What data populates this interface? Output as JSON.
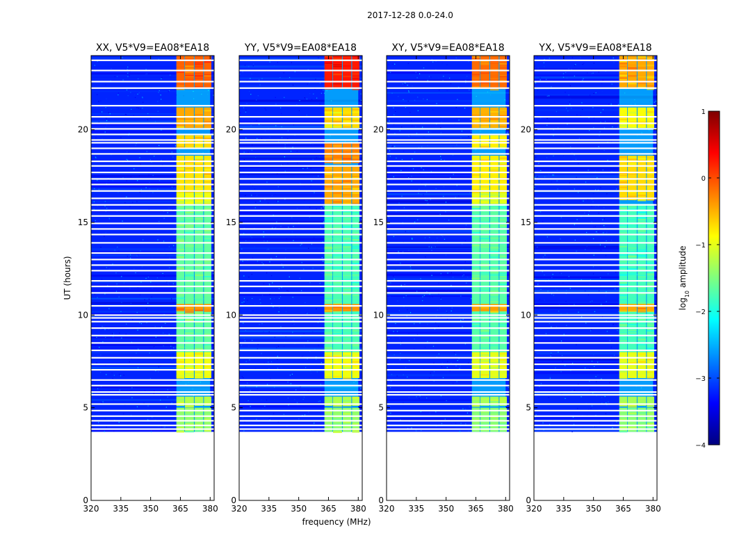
{
  "figure": {
    "suptitle": "2017-12-28 0.0-24.0",
    "xlabel": "frequency (MHz)",
    "ylabel": "UT (hours)"
  },
  "chart_data": {
    "type": "heatmap",
    "title": "2017-12-28 0.0-24.0",
    "xlabel": "frequency (MHz)",
    "ylabel": "UT (hours)",
    "xlim": [
      320,
      382
    ],
    "ylim": [
      0,
      24
    ],
    "xticks": [
      320,
      335,
      350,
      365,
      380
    ],
    "yticks": [
      0,
      5,
      10,
      15,
      20
    ],
    "data_start_hour": 3.7,
    "data_end_hour": 24.0,
    "active_band_mhz": [
      363,
      380
    ],
    "active_subbands_mhz": [
      [
        363.0,
        367.0
      ],
      [
        367.3,
        371.8
      ],
      [
        372.2,
        376.5
      ],
      [
        376.9,
        380.6
      ]
    ],
    "background_log10_amplitude": -3.2,
    "gap_hours": [
      3.85,
      4.05,
      4.3,
      4.55,
      4.85,
      5.2,
      5.7,
      5.85,
      6.2,
      6.5,
      7.05,
      7.35,
      7.7,
      8.1,
      8.5,
      8.9,
      9.3,
      9.65,
      9.85,
      10.0,
      10.5,
      11.2,
      11.55,
      11.85,
      12.4,
      12.7,
      13.0,
      13.35,
      13.9,
      14.35,
      14.65,
      14.95,
      15.35,
      15.65,
      15.95,
      16.3,
      16.7,
      17.05,
      17.35,
      17.7,
      18.05,
      18.3,
      18.7,
      19.0,
      19.3,
      19.45,
      19.75,
      20.05,
      20.35,
      20.7,
      21.3,
      22.25,
      22.6,
      23.2,
      23.75
    ],
    "panels": [
      {
        "title": "XX, V5*V9=EA08*EA18",
        "hot_intervals": [
          [
            22.2,
            24.0,
            -0.1
          ],
          [
            20.1,
            21.2,
            -0.45
          ],
          [
            19.0,
            19.7,
            -0.7
          ],
          [
            16.6,
            18.6,
            -0.75
          ],
          [
            16.0,
            16.6,
            -0.95
          ],
          [
            10.2,
            10.6,
            -0.35
          ],
          [
            6.6,
            8.0,
            -0.95
          ],
          [
            5.1,
            5.6,
            -1.25
          ],
          [
            3.7,
            5.0,
            -1.4
          ],
          [
            8.0,
            16.0,
            -1.65
          ]
        ]
      },
      {
        "title": "YY, V5*V9=EA08*EA18",
        "hot_intervals": [
          [
            22.2,
            24.0,
            0.25
          ],
          [
            20.1,
            21.2,
            -0.7
          ],
          [
            18.2,
            19.3,
            -0.25
          ],
          [
            16.0,
            18.0,
            -0.45
          ],
          [
            10.2,
            10.6,
            -0.35
          ],
          [
            6.6,
            8.0,
            -0.95
          ],
          [
            5.1,
            5.6,
            -1.25
          ],
          [
            3.7,
            5.0,
            -1.4
          ],
          [
            8.0,
            16.0,
            -1.75
          ]
        ]
      },
      {
        "title": "XY, V5*V9=EA08*EA18",
        "hot_intervals": [
          [
            22.2,
            24.0,
            -0.15
          ],
          [
            20.1,
            21.2,
            -0.5
          ],
          [
            19.0,
            19.7,
            -0.8
          ],
          [
            16.6,
            18.6,
            -0.8
          ],
          [
            16.0,
            16.6,
            -1.0
          ],
          [
            10.2,
            10.6,
            -0.4
          ],
          [
            6.6,
            8.0,
            -1.0
          ],
          [
            5.1,
            5.6,
            -1.3
          ],
          [
            3.7,
            5.0,
            -1.45
          ],
          [
            8.0,
            16.0,
            -1.7
          ]
        ]
      },
      {
        "title": "YX, V5*V9=EA08*EA18",
        "hot_intervals": [
          [
            22.2,
            24.0,
            -0.45
          ],
          [
            20.1,
            21.2,
            -0.9
          ],
          [
            16.2,
            18.6,
            -0.7
          ],
          [
            10.2,
            10.6,
            -0.45
          ],
          [
            6.6,
            8.0,
            -1.0
          ],
          [
            5.1,
            5.6,
            -1.3
          ],
          [
            3.7,
            5.0,
            -1.45
          ],
          [
            8.0,
            16.0,
            -1.8
          ]
        ]
      }
    ],
    "colorbar": {
      "label": "log10 amplitude",
      "label_base": "log",
      "label_sub": "10",
      "label_rest": " amplitude",
      "min": -4,
      "max": 1,
      "ticks": [
        1,
        0,
        -1,
        -2,
        -3,
        -4
      ],
      "tick_labels": [
        "1",
        "0",
        "−1",
        "−2",
        "−3",
        "−4"
      ],
      "colormap": "jet",
      "jet_stops": [
        "#00007f",
        "#0000ff",
        "#007fff",
        "#00ffff",
        "#7fff7f",
        "#ffff00",
        "#ff7f00",
        "#ff0000",
        "#7f0000"
      ]
    }
  }
}
